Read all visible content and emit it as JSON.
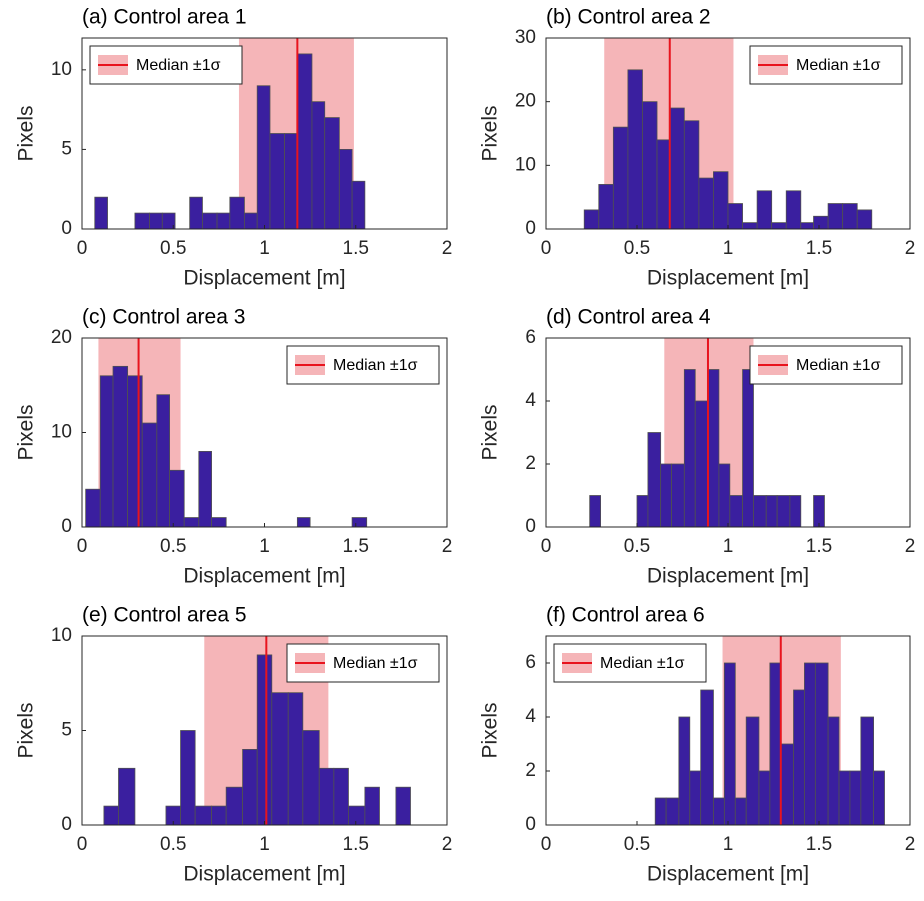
{
  "chart_data": [
    {
      "type": "histogram",
      "title": "(a) Control area 1",
      "xlabel": "Displacement [m]",
      "ylabel": "Pixels",
      "bins": [
        0.07,
        0.14,
        0.22,
        0.29,
        0.37,
        0.44,
        0.51,
        0.59,
        0.66,
        0.74,
        0.81,
        0.89,
        0.96,
        1.03,
        1.11,
        1.18,
        1.26,
        1.33,
        1.41,
        1.48,
        1.55
      ],
      "counts": [
        2,
        0,
        0,
        1,
        1,
        1,
        0,
        2,
        1,
        1,
        2,
        1,
        9,
        6,
        6,
        11,
        8,
        7,
        5,
        3
      ],
      "median": 1.18,
      "sigma_band": [
        0.86,
        1.49
      ],
      "legend_label": "Median ±1σ",
      "legend_loc": "upper left",
      "color": "#3a1f9f",
      "edgecolor": "#505050",
      "median_color": "#e8141e",
      "band_color": "#f5b5b8",
      "xlim": [
        0,
        2
      ],
      "xticks": [
        0,
        0.5,
        1,
        1.5,
        2
      ],
      "ylim": [
        0,
        12
      ],
      "yticks": [
        0,
        5,
        10
      ]
    },
    {
      "type": "histogram",
      "title": "(b) Control area 2",
      "xlabel": "Displacement [m]",
      "ylabel": "Pixels",
      "bins": [
        0.21,
        0.29,
        0.37,
        0.45,
        0.53,
        0.61,
        0.68,
        0.76,
        0.84,
        0.92,
        1.0,
        1.08,
        1.16,
        1.24,
        1.32,
        1.4,
        1.47,
        1.55,
        1.63,
        1.71,
        1.79
      ],
      "counts": [
        3,
        7,
        16,
        25,
        20,
        14,
        19,
        17,
        8,
        9,
        4,
        1,
        6,
        1,
        6,
        1,
        2,
        4,
        4,
        3
      ],
      "median": 0.68,
      "sigma_band": [
        0.32,
        1.03
      ],
      "legend_label": "Median ±1σ",
      "legend_loc": "upper right",
      "color": "#3a1f9f",
      "edgecolor": "#505050",
      "median_color": "#e8141e",
      "band_color": "#f5b5b8",
      "xlim": [
        0,
        2
      ],
      "xticks": [
        0,
        0.5,
        1,
        1.5,
        2
      ],
      "ylim": [
        0,
        30
      ],
      "yticks": [
        0,
        10,
        20,
        30
      ]
    },
    {
      "type": "histogram",
      "title": "(c) Control area 3",
      "xlabel": "Displacement [m]",
      "ylabel": "Pixels",
      "bins": [
        0.02,
        0.1,
        0.17,
        0.25,
        0.33,
        0.41,
        0.48,
        0.56,
        0.64,
        0.71,
        0.79,
        0.87,
        0.94,
        1.02,
        1.1,
        1.18,
        1.25,
        1.33,
        1.41,
        1.48,
        1.56
      ],
      "counts": [
        4,
        16,
        17,
        16,
        11,
        14,
        6,
        1,
        8,
        1,
        0,
        0,
        0,
        0,
        0,
        1,
        0,
        0,
        0,
        1
      ],
      "median": 0.31,
      "sigma_band": [
        0.09,
        0.54
      ],
      "legend_label": "Median ±1σ",
      "legend_loc": "upper right",
      "color": "#3a1f9f",
      "edgecolor": "#505050",
      "median_color": "#e8141e",
      "band_color": "#f5b5b8",
      "xlim": [
        0,
        2
      ],
      "xticks": [
        0,
        0.5,
        1,
        1.5,
        2
      ],
      "ylim": [
        0,
        20
      ],
      "yticks": [
        0,
        10,
        20
      ]
    },
    {
      "type": "histogram",
      "title": "(d) Control area 4",
      "xlabel": "Displacement [m]",
      "ylabel": "Pixels",
      "bins": [
        0.24,
        0.3,
        0.37,
        0.43,
        0.5,
        0.56,
        0.63,
        0.69,
        0.76,
        0.82,
        0.89,
        0.95,
        1.01,
        1.08,
        1.14,
        1.21,
        1.27,
        1.34,
        1.4,
        1.47,
        1.53
      ],
      "counts": [
        1,
        0,
        0,
        0,
        1,
        3,
        2,
        2,
        5,
        4,
        5,
        2,
        1,
        5,
        1,
        1,
        1,
        1,
        0,
        1
      ],
      "median": 0.89,
      "sigma_band": [
        0.65,
        1.14
      ],
      "legend_label": "Median ±1σ",
      "legend_loc": "upper right",
      "color": "#3a1f9f",
      "edgecolor": "#505050",
      "median_color": "#e8141e",
      "band_color": "#f5b5b8",
      "xlim": [
        0,
        2
      ],
      "xticks": [
        0,
        0.5,
        1,
        1.5,
        2
      ],
      "ylim": [
        0,
        6
      ],
      "yticks": [
        0,
        2,
        4,
        6
      ]
    },
    {
      "type": "histogram",
      "title": "(e) Control area 5",
      "xlabel": "Displacement [m]",
      "ylabel": "Pixels",
      "bins": [
        0.12,
        0.2,
        0.29,
        0.37,
        0.46,
        0.54,
        0.62,
        0.71,
        0.79,
        0.88,
        0.96,
        1.04,
        1.13,
        1.21,
        1.3,
        1.38,
        1.46,
        1.55,
        1.63,
        1.72,
        1.8
      ],
      "counts": [
        1,
        3,
        0,
        0,
        1,
        5,
        1,
        1,
        2,
        4,
        9,
        7,
        7,
        5,
        3,
        3,
        1,
        2,
        0,
        2
      ],
      "median": 1.01,
      "sigma_band": [
        0.67,
        1.35
      ],
      "legend_label": "Median ±1σ",
      "legend_loc": "upper right",
      "color": "#3a1f9f",
      "edgecolor": "#505050",
      "median_color": "#e8141e",
      "band_color": "#f5b5b8",
      "xlim": [
        0,
        2
      ],
      "xticks": [
        0,
        0.5,
        1,
        1.5,
        2
      ],
      "ylim": [
        0,
        10
      ],
      "yticks": [
        0,
        5,
        10
      ]
    },
    {
      "type": "histogram",
      "title": "(f) Control area 6",
      "xlabel": "Displacement [m]",
      "ylabel": "Pixels",
      "bins": [
        0.6,
        0.66,
        0.73,
        0.79,
        0.85,
        0.92,
        0.98,
        1.04,
        1.1,
        1.17,
        1.23,
        1.29,
        1.36,
        1.42,
        1.48,
        1.55,
        1.61,
        1.67,
        1.73,
        1.8,
        1.86
      ],
      "counts": [
        1,
        1,
        4,
        2,
        5,
        1,
        6,
        1,
        4,
        2,
        6,
        3,
        5,
        6,
        6,
        4,
        2,
        2,
        4,
        2
      ],
      "median": 1.29,
      "sigma_band": [
        0.97,
        1.62
      ],
      "legend_label": "Median ±1σ",
      "legend_loc": "upper left",
      "color": "#3a1f9f",
      "edgecolor": "#505050",
      "median_color": "#e8141e",
      "band_color": "#f5b5b8",
      "xlim": [
        0,
        2
      ],
      "xticks": [
        0,
        0.5,
        1,
        1.5,
        2
      ],
      "ylim": [
        0,
        7
      ],
      "yticks": [
        0,
        2,
        4,
        6
      ]
    }
  ]
}
